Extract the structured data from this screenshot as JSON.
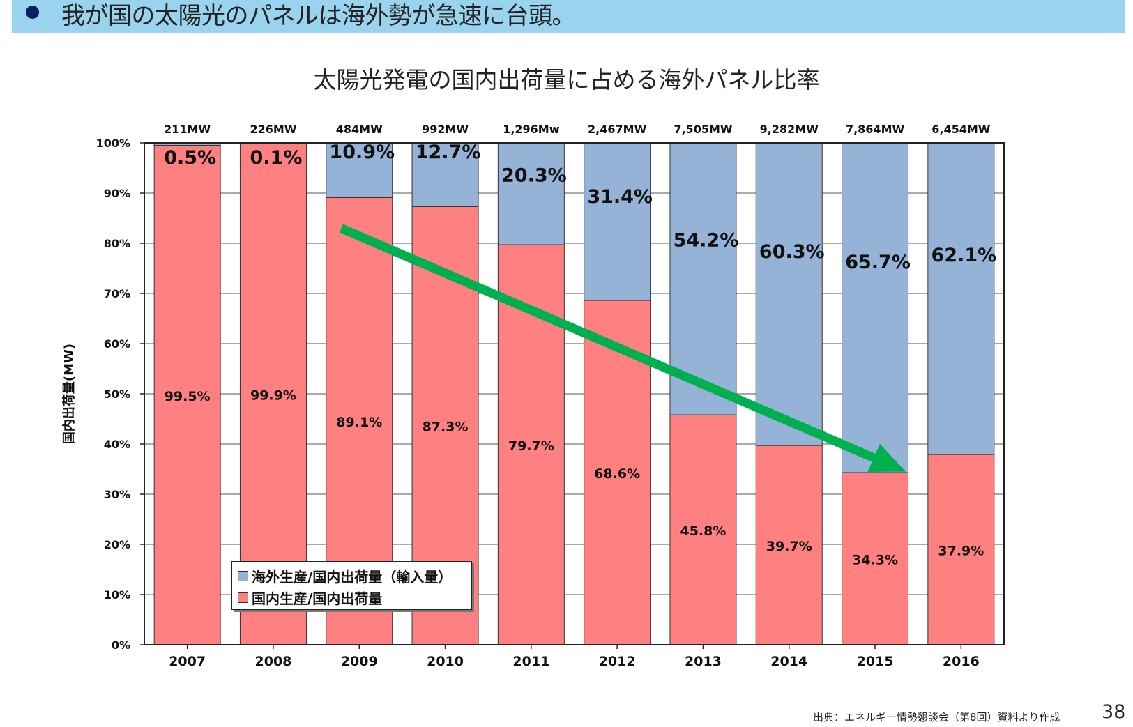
{
  "header": {
    "text": "我が国の太陽光のパネルは海外勢が急速に台頭。"
  },
  "page_number": "38",
  "source_note": "出典：エネルギー情勢懇談会（第8回）資料より作成",
  "colors": {
    "header_band": "#99d3ee",
    "bullet": "#0b1f66",
    "domestic": "#ff8080",
    "overseas": "#95b3d7",
    "arrow": "#00b050"
  },
  "chart_data": {
    "type": "bar",
    "stacked": true,
    "title": "太陽光発電の国内出荷量に占める海外パネル比率",
    "ylabel": "国内出荷量(MW)",
    "xlabel": "",
    "ylim": [
      0,
      100
    ],
    "yticks": [
      "0%",
      "10%",
      "20%",
      "30%",
      "40%",
      "50%",
      "60%",
      "70%",
      "80%",
      "90%",
      "100%"
    ],
    "grid": true,
    "categories": [
      "2007",
      "2008",
      "2009",
      "2010",
      "2011",
      "2012",
      "2013",
      "2014",
      "2015",
      "2016"
    ],
    "totals": [
      "211MW",
      "226MW",
      "484MW",
      "992MW",
      "1,296Mw",
      "2,467MW",
      "7,505MW",
      "9,282MW",
      "7,864MW",
      "6,454MW"
    ],
    "series": [
      {
        "name": "国内生産/国内出荷量",
        "color": "#ff8080",
        "values": [
          99.5,
          99.9,
          89.1,
          87.3,
          79.7,
          68.6,
          45.8,
          39.7,
          34.3,
          37.9
        ],
        "labels": [
          "99.5%",
          "99.9%",
          "89.1%",
          "87.3%",
          "79.7%",
          "68.6%",
          "45.8%",
          "39.7%",
          "34.3%",
          "37.9%"
        ]
      },
      {
        "name": "海外生産/国内出荷量（輸入量）",
        "color": "#95b3d7",
        "values": [
          0.5,
          0.1,
          10.9,
          12.7,
          20.3,
          31.4,
          54.2,
          60.3,
          65.7,
          62.1
        ],
        "labels": [
          "0.5%",
          "0.1%",
          "10.9%",
          "12.7%",
          "20.3%",
          "31.4%",
          "54.2%",
          "60.3%",
          "65.7%",
          "62.1%"
        ]
      }
    ],
    "legend": [
      "海外生産/国内出荷量（輸入量）",
      "国内生産/国内出荷量"
    ],
    "legend_position": "lower-left",
    "annotations": [
      {
        "type": "arrow",
        "from": {
          "category": "2009",
          "value": 83
        },
        "to": {
          "category": "2015",
          "value": 34.5
        },
        "color": "#00b050"
      }
    ]
  }
}
